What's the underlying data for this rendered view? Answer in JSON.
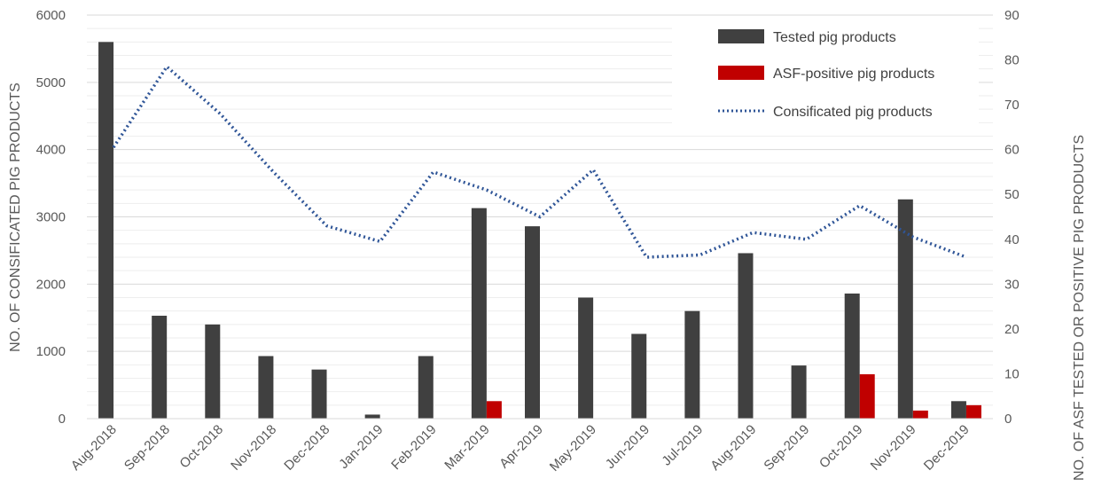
{
  "chart_data": {
    "type": "bar",
    "categories": [
      "Aug-2018",
      "Sep-2018",
      "Oct-2018",
      "Nov-2018",
      "Dec-2018",
      "Jan-2019",
      "Feb-2019",
      "Mar-2019",
      "Apr-2019",
      "May-2019",
      "Jun-2019",
      "Jul-2019",
      "Aug-2019",
      "Sep-2019",
      "Oct-2019",
      "Nov-2019",
      "Dec-2019"
    ],
    "ylabel_left": "NO. OF CONSIFICATED PIG PRODUCTS",
    "ylabel_right": "NO. OF ASF TESTED OR POSITIVE PIG PRODUCTS",
    "ylim_left": [
      0,
      6000
    ],
    "ylim_right": [
      0,
      90
    ],
    "yticks_left": [
      0,
      1000,
      2000,
      3000,
      4000,
      5000,
      6000
    ],
    "yticks_right": [
      0,
      10,
      20,
      30,
      40,
      50,
      60,
      70,
      80,
      90
    ],
    "grid": true,
    "legend_position": "top-right",
    "series": [
      {
        "name": "Tested pig products",
        "kind": "bar",
        "axis": "left",
        "color": "#404040",
        "values": [
          5600,
          1530,
          1400,
          930,
          730,
          60,
          930,
          3130,
          2860,
          1800,
          1260,
          1600,
          2460,
          790,
          1860,
          3260,
          260
        ]
      },
      {
        "name": "ASF-positive pig products",
        "kind": "bar",
        "axis": "left",
        "color": "#c00000",
        "values": [
          0,
          0,
          0,
          0,
          0,
          0,
          0,
          260,
          0,
          0,
          0,
          0,
          0,
          0,
          660,
          120,
          200
        ]
      },
      {
        "name": "Consificated pig products",
        "kind": "line",
        "axis": "right",
        "style": "dotted",
        "color": "#2f5597",
        "values": [
          60.5,
          78.5,
          68,
          55,
          43,
          39.5,
          55,
          51,
          45,
          55.5,
          36,
          36.5,
          41.5,
          40,
          47.5,
          40.5,
          36
        ]
      }
    ]
  }
}
